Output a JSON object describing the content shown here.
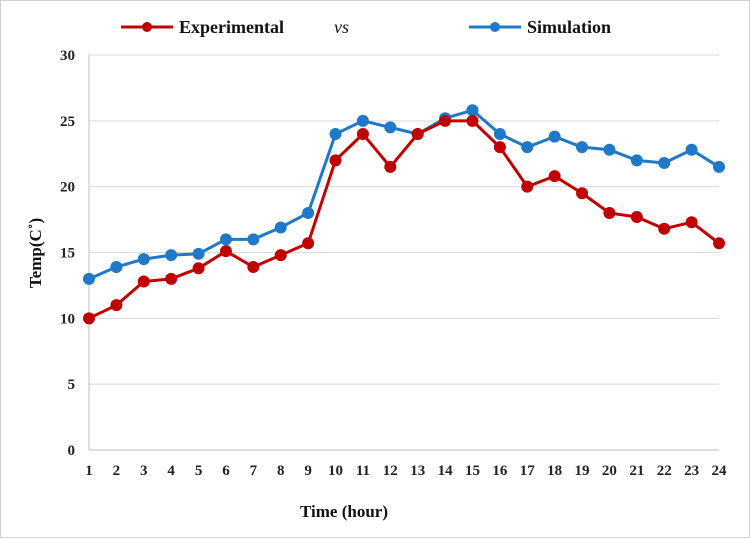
{
  "chart_data": {
    "type": "line",
    "xlabel": "Time (hour)",
    "ylabel": "Temp(C˚)",
    "ylim": [
      0,
      30
    ],
    "yticks": [
      0,
      5,
      10,
      15,
      20,
      25,
      30
    ],
    "categories": [
      "1",
      "2",
      "3",
      "4",
      "5",
      "6",
      "7",
      "8",
      "9",
      "10",
      "11",
      "12",
      "13",
      "14",
      "15",
      "16",
      "17",
      "18",
      "19",
      "20",
      "21",
      "22",
      "23",
      "24"
    ],
    "legend": {
      "placement": "top",
      "separator": "vs"
    },
    "grid": true,
    "series": [
      {
        "name": "Experimental",
        "color": "#c00000",
        "values": [
          10,
          11,
          12.8,
          13,
          13.8,
          15.1,
          13.9,
          14.8,
          15.7,
          22,
          24,
          21.5,
          24,
          25,
          25,
          23,
          20,
          20.8,
          19.5,
          18,
          17.7,
          16.8,
          17.3,
          15.7
        ]
      },
      {
        "name": "Simulation",
        "color": "#1f78c8",
        "values": [
          13,
          13.9,
          14.5,
          14.8,
          14.9,
          16,
          16,
          16.9,
          18,
          24,
          25,
          24.5,
          24,
          25.2,
          25.8,
          24,
          23,
          23.8,
          23,
          22.8,
          22,
          21.8,
          22.8,
          21.5
        ]
      }
    ]
  }
}
